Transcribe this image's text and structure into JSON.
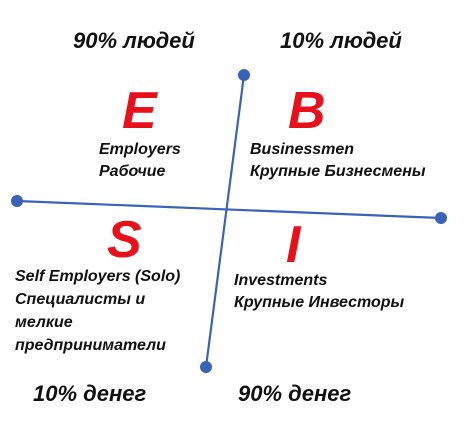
{
  "colors": {
    "axis": "#3a63b8",
    "letter": "#e8101a",
    "text": "#111111"
  },
  "top_left_stat": "90% людей",
  "top_right_stat": "10% людей",
  "bottom_left_stat": "10% денег",
  "bottom_right_stat": "90% денег",
  "quadrants": {
    "e": {
      "letter": "E",
      "lines": [
        "Employers",
        "Рабочие"
      ]
    },
    "b": {
      "letter": "B",
      "lines": [
        "Businessmen",
        "Крупные Бизнесмены"
      ]
    },
    "s": {
      "letter": "S",
      "lines": [
        "Self Employers (Solo)",
        "Специалисты и",
        "мелкие",
        "предприниматели"
      ]
    },
    "i": {
      "letter": "I",
      "lines": [
        "Investments",
        "Крупные Инвесторы"
      ]
    }
  }
}
